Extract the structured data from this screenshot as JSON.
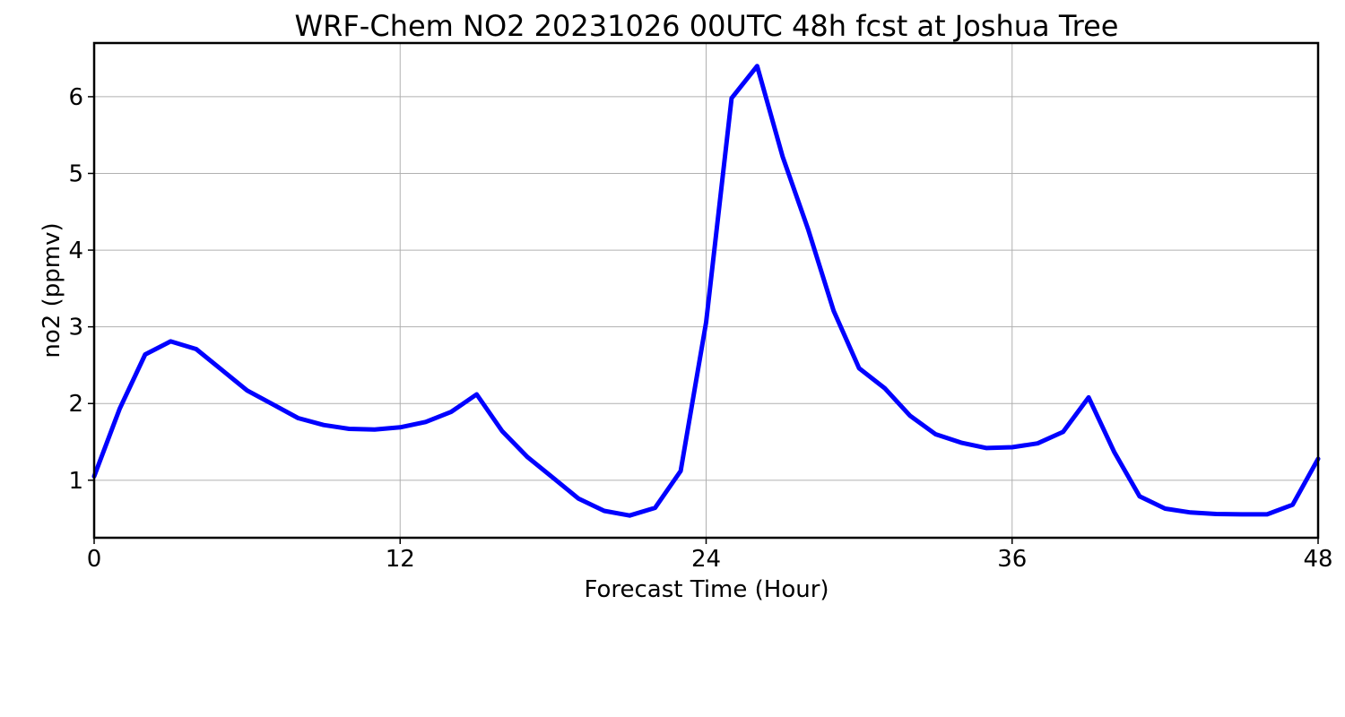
{
  "chart_data": {
    "type": "line",
    "title": "WRF-Chem NO2  20231026 00UTC 48h fcst at Joshua Tree",
    "xlabel": "Forecast Time (Hour)",
    "ylabel": "no2  (ppmv)",
    "xlim": [
      0,
      48
    ],
    "ylim": [
      0.25,
      6.7
    ],
    "xticks": [
      0,
      12,
      24,
      36,
      48
    ],
    "yticks": [
      1,
      2,
      3,
      4,
      5,
      6
    ],
    "grid": true,
    "line_color": "#0000ff",
    "series": [
      {
        "x": [
          0,
          1,
          2,
          3,
          4,
          5,
          6,
          7,
          8,
          9,
          10,
          11,
          12,
          13,
          14,
          15,
          16,
          17,
          18,
          19,
          20,
          21,
          22,
          23,
          24,
          25,
          26,
          27,
          28,
          29,
          30,
          31,
          32,
          33,
          34,
          35,
          36,
          37,
          38,
          39,
          40,
          41,
          42,
          43,
          44,
          45,
          46,
          47,
          48
        ],
        "values": [
          1.05,
          1.93,
          2.64,
          2.81,
          2.71,
          2.44,
          2.17,
          1.99,
          1.81,
          1.72,
          1.67,
          1.66,
          1.69,
          1.76,
          1.89,
          2.12,
          1.64,
          1.3,
          1.03,
          0.76,
          0.6,
          0.54,
          0.64,
          1.12,
          3.06,
          5.98,
          6.4,
          5.22,
          4.27,
          3.21,
          2.46,
          2.2,
          1.84,
          1.6,
          1.49,
          1.42,
          1.43,
          1.48,
          1.63,
          2.08,
          1.37,
          0.79,
          0.63,
          0.58,
          0.56,
          0.555,
          0.555,
          0.68,
          1.28
        ]
      }
    ]
  }
}
